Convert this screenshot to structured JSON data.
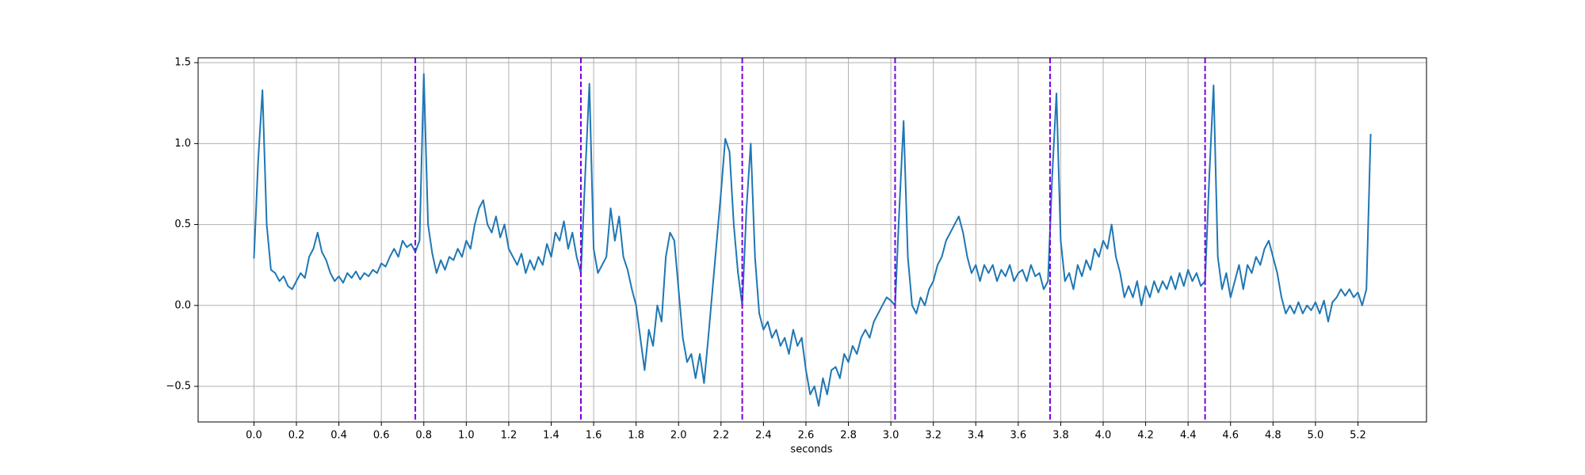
{
  "chart_data": {
    "type": "line",
    "xlabel": "seconds",
    "color": "#1f77b4",
    "grid": true,
    "vline_color": "#7b00e0",
    "vlines": [
      0.76,
      1.54,
      2.3,
      3.02,
      3.75,
      4.48
    ],
    "xlim": [
      -0.263,
      5.523
    ],
    "ylim": [
      -0.72,
      1.53
    ],
    "xticks": [
      {
        "value": 0,
        "label": "0.0"
      },
      0.2,
      0.4,
      0.6,
      0.8,
      {
        "value": 1,
        "label": "1.0"
      },
      1.2,
      1.4,
      1.6,
      1.8,
      {
        "value": 2,
        "label": "2.0"
      },
      2.2,
      2.4,
      2.6,
      2.8,
      {
        "value": 3,
        "label": "3.0"
      },
      3.2,
      3.4,
      3.6,
      3.8,
      {
        "value": 4,
        "label": "4.0"
      },
      4.2,
      4.4,
      4.6,
      4.8,
      {
        "value": 5,
        "label": "5.0"
      },
      5.2
    ],
    "yticks": [
      {
        "value": -0.5,
        "label": "−0.5"
      },
      {
        "value": 0,
        "label": "0.0"
      },
      0.5,
      {
        "value": 1,
        "label": "1.0"
      },
      1.5
    ],
    "x": [
      0.0,
      0.02,
      0.04,
      0.06,
      0.08,
      0.1,
      0.12,
      0.14,
      0.16,
      0.18,
      0.2,
      0.22,
      0.24,
      0.26,
      0.28,
      0.3,
      0.32,
      0.34,
      0.36,
      0.38,
      0.4,
      0.42,
      0.44,
      0.46,
      0.48,
      0.5,
      0.52,
      0.54,
      0.56,
      0.58,
      0.6,
      0.62,
      0.64,
      0.66,
      0.68,
      0.7,
      0.72,
      0.74,
      0.76,
      0.78,
      0.8,
      0.82,
      0.84,
      0.86,
      0.88,
      0.9,
      0.92,
      0.94,
      0.96,
      0.98,
      1.0,
      1.02,
      1.04,
      1.06,
      1.08,
      1.1,
      1.12,
      1.14,
      1.16,
      1.18,
      1.2,
      1.22,
      1.24,
      1.26,
      1.28,
      1.3,
      1.32,
      1.34,
      1.36,
      1.38,
      1.4,
      1.42,
      1.44,
      1.46,
      1.48,
      1.5,
      1.52,
      1.54,
      1.56,
      1.58,
      1.6,
      1.62,
      1.64,
      1.66,
      1.68,
      1.7,
      1.72,
      1.74,
      1.76,
      1.78,
      1.8,
      1.82,
      1.84,
      1.86,
      1.88,
      1.9,
      1.92,
      1.94,
      1.96,
      1.98,
      2.0,
      2.02,
      2.04,
      2.06,
      2.08,
      2.1,
      2.12,
      2.14,
      2.16,
      2.18,
      2.2,
      2.22,
      2.24,
      2.26,
      2.28,
      2.3,
      2.32,
      2.34,
      2.36,
      2.38,
      2.4,
      2.42,
      2.44,
      2.46,
      2.48,
      2.5,
      2.52,
      2.54,
      2.56,
      2.58,
      2.6,
      2.62,
      2.64,
      2.66,
      2.68,
      2.7,
      2.72,
      2.74,
      2.76,
      2.78,
      2.8,
      2.82,
      2.84,
      2.86,
      2.88,
      2.9,
      2.92,
      2.94,
      2.96,
      2.98,
      3.0,
      3.02,
      3.04,
      3.06,
      3.08,
      3.1,
      3.12,
      3.14,
      3.16,
      3.18,
      3.2,
      3.22,
      3.24,
      3.26,
      3.28,
      3.3,
      3.32,
      3.34,
      3.36,
      3.38,
      3.4,
      3.42,
      3.44,
      3.46,
      3.48,
      3.5,
      3.52,
      3.54,
      3.56,
      3.58,
      3.6,
      3.62,
      3.64,
      3.66,
      3.68,
      3.7,
      3.72,
      3.74,
      3.76,
      3.78,
      3.8,
      3.82,
      3.84,
      3.86,
      3.88,
      3.9,
      3.92,
      3.94,
      3.96,
      3.98,
      4.0,
      4.02,
      4.04,
      4.06,
      4.08,
      4.1,
      4.12,
      4.14,
      4.16,
      4.18,
      4.2,
      4.22,
      4.24,
      4.26,
      4.28,
      4.3,
      4.32,
      4.34,
      4.36,
      4.38,
      4.4,
      4.42,
      4.44,
      4.46,
      4.48,
      4.5,
      4.52,
      4.54,
      4.56,
      4.58,
      4.6,
      4.62,
      4.64,
      4.66,
      4.68,
      4.7,
      4.72,
      4.74,
      4.76,
      4.78,
      4.8,
      4.82,
      4.84,
      4.86,
      4.88,
      4.9,
      4.92,
      4.94,
      4.96,
      4.98,
      5.0,
      5.02,
      5.04,
      5.06,
      5.08,
      5.1,
      5.12,
      5.14,
      5.16,
      5.18,
      5.2,
      5.22,
      5.24,
      5.26
    ],
    "values": [
      0.29,
      0.9,
      1.33,
      0.5,
      0.22,
      0.2,
      0.15,
      0.18,
      0.12,
      0.1,
      0.15,
      0.2,
      0.17,
      0.3,
      0.35,
      0.45,
      0.33,
      0.28,
      0.2,
      0.15,
      0.18,
      0.14,
      0.2,
      0.17,
      0.21,
      0.16,
      0.2,
      0.18,
      0.22,
      0.2,
      0.26,
      0.24,
      0.3,
      0.35,
      0.3,
      0.4,
      0.36,
      0.38,
      0.33,
      0.4,
      1.43,
      0.5,
      0.32,
      0.2,
      0.28,
      0.22,
      0.3,
      0.28,
      0.35,
      0.3,
      0.4,
      0.35,
      0.5,
      0.6,
      0.65,
      0.5,
      0.45,
      0.55,
      0.42,
      0.5,
      0.35,
      0.3,
      0.25,
      0.32,
      0.2,
      0.28,
      0.22,
      0.3,
      0.25,
      0.38,
      0.3,
      0.45,
      0.4,
      0.52,
      0.35,
      0.45,
      0.3,
      0.2,
      0.8,
      1.37,
      0.35,
      0.2,
      0.25,
      0.3,
      0.6,
      0.4,
      0.55,
      0.3,
      0.22,
      0.1,
      0.0,
      -0.2,
      -0.4,
      -0.15,
      -0.25,
      0.0,
      -0.1,
      0.3,
      0.45,
      0.4,
      0.1,
      -0.2,
      -0.35,
      -0.3,
      -0.45,
      -0.3,
      -0.48,
      -0.2,
      0.1,
      0.4,
      0.7,
      1.03,
      0.95,
      0.5,
      0.2,
      0.0,
      0.6,
      1.0,
      0.3,
      -0.05,
      -0.15,
      -0.1,
      -0.2,
      -0.15,
      -0.25,
      -0.2,
      -0.3,
      -0.15,
      -0.25,
      -0.2,
      -0.4,
      -0.55,
      -0.5,
      -0.62,
      -0.45,
      -0.55,
      -0.4,
      -0.38,
      -0.45,
      -0.3,
      -0.35,
      -0.25,
      -0.3,
      -0.2,
      -0.15,
      -0.2,
      -0.1,
      -0.05,
      0.0,
      0.05,
      0.03,
      0.0,
      0.6,
      1.14,
      0.3,
      0.0,
      -0.05,
      0.05,
      0.0,
      0.1,
      0.15,
      0.25,
      0.3,
      0.4,
      0.45,
      0.5,
      0.55,
      0.45,
      0.3,
      0.2,
      0.25,
      0.15,
      0.25,
      0.2,
      0.25,
      0.15,
      0.22,
      0.18,
      0.25,
      0.15,
      0.2,
      0.22,
      0.15,
      0.25,
      0.18,
      0.2,
      0.1,
      0.15,
      0.8,
      1.31,
      0.4,
      0.15,
      0.2,
      0.1,
      0.25,
      0.18,
      0.28,
      0.22,
      0.35,
      0.3,
      0.4,
      0.35,
      0.5,
      0.3,
      0.2,
      0.05,
      0.12,
      0.05,
      0.15,
      0.0,
      0.12,
      0.05,
      0.15,
      0.08,
      0.15,
      0.1,
      0.18,
      0.1,
      0.2,
      0.12,
      0.22,
      0.15,
      0.2,
      0.12,
      0.15,
      0.8,
      1.36,
      0.3,
      0.1,
      0.2,
      0.05,
      0.15,
      0.25,
      0.1,
      0.25,
      0.2,
      0.3,
      0.25,
      0.35,
      0.4,
      0.3,
      0.2,
      0.05,
      -0.05,
      0.0,
      -0.05,
      0.02,
      -0.05,
      0.0,
      -0.03,
      0.02,
      -0.05,
      0.03,
      -0.1,
      0.02,
      0.05,
      0.1,
      0.06,
      0.1,
      0.05,
      0.08,
      0.0,
      0.1,
      1.06
    ]
  }
}
